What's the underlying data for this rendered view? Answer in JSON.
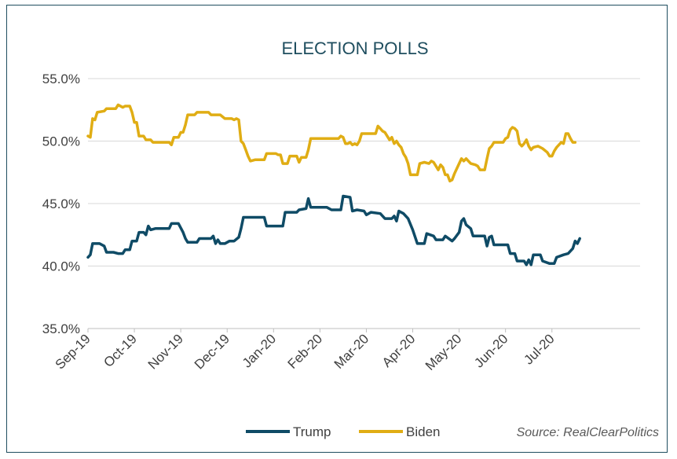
{
  "chart_data": {
    "type": "line",
    "title": "ELECTION POLLS",
    "source": "Source: RealClearPolitics",
    "ylim": [
      35,
      55
    ],
    "yticks": [
      "55.0%",
      "50.0%",
      "45.0%",
      "40.0%",
      "35.0%"
    ],
    "ytick_values": [
      55,
      50,
      45,
      40,
      35
    ],
    "xticks": [
      "Sep-19",
      "Oct-19",
      "Nov-19",
      "Dec-19",
      "Jan-20",
      "Feb-20",
      "Mar-20",
      "Apr-20",
      "May-20",
      "Jun-20",
      "Jul-20"
    ],
    "xlim": [
      0,
      11.9
    ],
    "grid": true,
    "legend_position": "bottom",
    "series": [
      {
        "name": "Trump",
        "color": "#0f4b66",
        "points": [
          [
            0.0,
            40.7
          ],
          [
            0.05,
            40.9
          ],
          [
            0.1,
            41.8
          ],
          [
            0.25,
            41.8
          ],
          [
            0.35,
            41.6
          ],
          [
            0.4,
            41.1
          ],
          [
            0.55,
            41.1
          ],
          [
            0.65,
            41.0
          ],
          [
            0.75,
            41.0
          ],
          [
            0.8,
            41.3
          ],
          [
            0.9,
            41.3
          ],
          [
            0.95,
            42.0
          ],
          [
            1.05,
            42.0
          ],
          [
            1.1,
            42.7
          ],
          [
            1.2,
            42.7
          ],
          [
            1.25,
            42.5
          ],
          [
            1.3,
            43.2
          ],
          [
            1.35,
            42.9
          ],
          [
            1.45,
            43.0
          ],
          [
            1.75,
            43.0
          ],
          [
            1.8,
            43.4
          ],
          [
            1.95,
            43.4
          ],
          [
            2.05,
            42.7
          ],
          [
            2.1,
            42.2
          ],
          [
            2.15,
            41.9
          ],
          [
            2.35,
            41.9
          ],
          [
            2.4,
            42.2
          ],
          [
            2.65,
            42.2
          ],
          [
            2.7,
            42.4
          ],
          [
            2.75,
            41.8
          ],
          [
            2.8,
            42.1
          ],
          [
            2.85,
            41.8
          ],
          [
            2.95,
            41.8
          ],
          [
            3.05,
            42.0
          ],
          [
            3.15,
            42.0
          ],
          [
            3.25,
            42.3
          ],
          [
            3.3,
            43.0
          ],
          [
            3.35,
            43.9
          ],
          [
            3.8,
            43.9
          ],
          [
            3.85,
            43.2
          ],
          [
            4.2,
            43.2
          ],
          [
            4.25,
            44.3
          ],
          [
            4.5,
            44.3
          ],
          [
            4.55,
            44.5
          ],
          [
            4.7,
            44.6
          ],
          [
            4.75,
            45.4
          ],
          [
            4.8,
            44.7
          ],
          [
            5.15,
            44.7
          ],
          [
            5.25,
            44.5
          ],
          [
            5.45,
            44.5
          ],
          [
            5.5,
            45.6
          ],
          [
            5.65,
            45.5
          ],
          [
            5.7,
            44.4
          ],
          [
            5.8,
            44.5
          ],
          [
            5.95,
            44.4
          ],
          [
            6.0,
            44.1
          ],
          [
            6.1,
            44.3
          ],
          [
            6.3,
            44.2
          ],
          [
            6.4,
            43.8
          ],
          [
            6.55,
            43.8
          ],
          [
            6.6,
            44.0
          ],
          [
            6.65,
            43.6
          ],
          [
            6.7,
            44.4
          ],
          [
            6.8,
            44.2
          ],
          [
            6.9,
            43.8
          ],
          [
            7.0,
            42.9
          ],
          [
            7.1,
            41.8
          ],
          [
            7.25,
            41.8
          ],
          [
            7.3,
            42.6
          ],
          [
            7.45,
            42.4
          ],
          [
            7.5,
            42.1
          ],
          [
            7.65,
            42.1
          ],
          [
            7.7,
            42.4
          ],
          [
            7.85,
            42.0
          ],
          [
            7.9,
            42.2
          ],
          [
            8.0,
            42.7
          ],
          [
            8.05,
            43.6
          ],
          [
            8.1,
            43.8
          ],
          [
            8.15,
            43.3
          ],
          [
            8.25,
            43.0
          ],
          [
            8.3,
            42.4
          ],
          [
            8.55,
            42.4
          ],
          [
            8.6,
            41.6
          ],
          [
            8.65,
            42.3
          ],
          [
            8.7,
            42.4
          ],
          [
            8.75,
            41.7
          ],
          [
            9.05,
            41.7
          ],
          [
            9.1,
            41.0
          ],
          [
            9.2,
            41.0
          ],
          [
            9.25,
            40.4
          ],
          [
            9.4,
            40.4
          ],
          [
            9.45,
            40.1
          ],
          [
            9.5,
            40.5
          ],
          [
            9.55,
            40.1
          ],
          [
            9.6,
            40.9
          ],
          [
            9.75,
            40.9
          ],
          [
            9.8,
            40.4
          ],
          [
            9.95,
            40.2
          ],
          [
            10.05,
            40.2
          ],
          [
            10.1,
            40.7
          ],
          [
            10.25,
            40.9
          ],
          [
            10.35,
            41.0
          ],
          [
            10.45,
            41.4
          ],
          [
            10.5,
            42.0
          ],
          [
            10.55,
            41.8
          ],
          [
            10.6,
            42.2
          ]
        ]
      },
      {
        "name": "Biden",
        "color": "#e0ad14",
        "points": [
          [
            0.0,
            50.4
          ],
          [
            0.05,
            50.3
          ],
          [
            0.1,
            51.8
          ],
          [
            0.15,
            51.7
          ],
          [
            0.2,
            52.3
          ],
          [
            0.35,
            52.4
          ],
          [
            0.4,
            52.6
          ],
          [
            0.6,
            52.6
          ],
          [
            0.65,
            52.9
          ],
          [
            0.75,
            52.7
          ],
          [
            0.8,
            52.8
          ],
          [
            0.9,
            52.8
          ],
          [
            0.95,
            52.3
          ],
          [
            1.0,
            51.5
          ],
          [
            1.05,
            51.5
          ],
          [
            1.1,
            50.4
          ],
          [
            1.2,
            50.4
          ],
          [
            1.25,
            50.1
          ],
          [
            1.35,
            50.1
          ],
          [
            1.4,
            49.9
          ],
          [
            1.75,
            49.9
          ],
          [
            1.8,
            49.7
          ],
          [
            1.85,
            50.3
          ],
          [
            1.95,
            50.3
          ],
          [
            2.0,
            50.7
          ],
          [
            2.05,
            50.7
          ],
          [
            2.1,
            51.3
          ],
          [
            2.15,
            52.1
          ],
          [
            2.3,
            52.1
          ],
          [
            2.35,
            52.3
          ],
          [
            2.6,
            52.3
          ],
          [
            2.65,
            52.1
          ],
          [
            2.85,
            52.1
          ],
          [
            2.95,
            51.8
          ],
          [
            3.1,
            51.8
          ],
          [
            3.15,
            51.7
          ],
          [
            3.2,
            51.8
          ],
          [
            3.25,
            51.7
          ],
          [
            3.3,
            50.0
          ],
          [
            3.35,
            49.8
          ],
          [
            3.4,
            49.3
          ],
          [
            3.45,
            48.8
          ],
          [
            3.5,
            48.4
          ],
          [
            3.6,
            48.5
          ],
          [
            3.8,
            48.5
          ],
          [
            3.85,
            49.0
          ],
          [
            4.05,
            49.0
          ],
          [
            4.1,
            48.9
          ],
          [
            4.15,
            48.9
          ],
          [
            4.2,
            48.2
          ],
          [
            4.3,
            48.2
          ],
          [
            4.35,
            48.8
          ],
          [
            4.5,
            48.8
          ],
          [
            4.55,
            48.3
          ],
          [
            4.6,
            48.7
          ],
          [
            4.7,
            48.7
          ],
          [
            4.75,
            49.3
          ],
          [
            4.8,
            50.2
          ],
          [
            5.2,
            50.2
          ],
          [
            5.35,
            50.2
          ],
          [
            5.4,
            50.2
          ],
          [
            5.45,
            50.4
          ],
          [
            5.5,
            50.3
          ],
          [
            5.55,
            49.8
          ],
          [
            5.6,
            49.8
          ],
          [
            5.65,
            49.9
          ],
          [
            5.7,
            49.7
          ],
          [
            5.75,
            49.8
          ],
          [
            5.8,
            49.7
          ],
          [
            5.85,
            50.0
          ],
          [
            5.9,
            50.6
          ],
          [
            6.2,
            50.6
          ],
          [
            6.25,
            51.2
          ],
          [
            6.3,
            51.0
          ],
          [
            6.35,
            50.8
          ],
          [
            6.4,
            50.7
          ],
          [
            6.5,
            50.1
          ],
          [
            6.55,
            50.3
          ],
          [
            6.6,
            49.8
          ],
          [
            6.65,
            50.0
          ],
          [
            6.7,
            49.7
          ],
          [
            6.75,
            49.5
          ],
          [
            6.8,
            49.0
          ],
          [
            6.85,
            48.7
          ],
          [
            6.9,
            48.2
          ],
          [
            6.95,
            47.3
          ],
          [
            7.1,
            47.3
          ],
          [
            7.15,
            48.2
          ],
          [
            7.25,
            48.3
          ],
          [
            7.35,
            48.2
          ],
          [
            7.4,
            48.4
          ],
          [
            7.45,
            48.3
          ],
          [
            7.5,
            48.0
          ],
          [
            7.55,
            47.7
          ],
          [
            7.6,
            48.1
          ],
          [
            7.65,
            47.9
          ],
          [
            7.7,
            47.3
          ],
          [
            7.75,
            47.3
          ],
          [
            7.8,
            46.8
          ],
          [
            7.85,
            46.9
          ],
          [
            7.9,
            47.4
          ],
          [
            8.0,
            48.2
          ],
          [
            8.05,
            48.6
          ],
          [
            8.1,
            48.4
          ],
          [
            8.15,
            48.6
          ],
          [
            8.2,
            48.4
          ],
          [
            8.25,
            48.2
          ],
          [
            8.35,
            48.1
          ],
          [
            8.4,
            48.0
          ],
          [
            8.45,
            47.7
          ],
          [
            8.55,
            47.7
          ],
          [
            8.6,
            48.6
          ],
          [
            8.65,
            49.4
          ],
          [
            8.7,
            49.6
          ],
          [
            8.75,
            49.9
          ],
          [
            8.95,
            49.9
          ],
          [
            9.0,
            50.2
          ],
          [
            9.05,
            50.3
          ],
          [
            9.1,
            50.9
          ],
          [
            9.15,
            51.1
          ],
          [
            9.2,
            51.0
          ],
          [
            9.25,
            50.8
          ],
          [
            9.3,
            49.8
          ],
          [
            9.35,
            49.6
          ],
          [
            9.4,
            49.8
          ],
          [
            9.45,
            50.1
          ],
          [
            9.5,
            49.6
          ],
          [
            9.55,
            49.3
          ],
          [
            9.6,
            49.5
          ],
          [
            9.7,
            49.6
          ],
          [
            9.8,
            49.4
          ],
          [
            9.9,
            49.1
          ],
          [
            9.95,
            48.8
          ],
          [
            10.0,
            48.8
          ],
          [
            10.05,
            49.2
          ],
          [
            10.1,
            49.5
          ],
          [
            10.2,
            49.9
          ],
          [
            10.25,
            49.8
          ],
          [
            10.3,
            50.6
          ],
          [
            10.35,
            50.6
          ],
          [
            10.4,
            50.2
          ],
          [
            10.45,
            49.9
          ],
          [
            10.5,
            49.9
          ]
        ]
      }
    ]
  }
}
